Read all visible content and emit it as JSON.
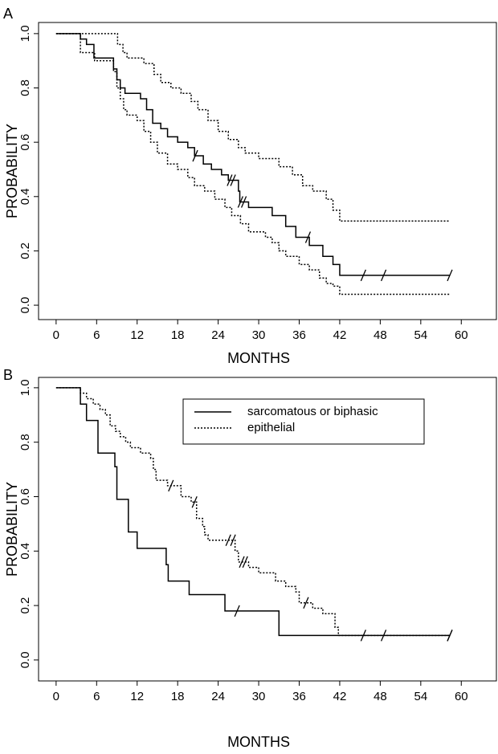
{
  "chart_data": [
    {
      "type": "step",
      "panel_label": "A",
      "xlabel": "MONTHS",
      "ylabel": "PROBABILITY",
      "xlim": [
        -2.6,
        65.2
      ],
      "ylim": [
        -0.053,
        1.041
      ],
      "xticks": [
        0,
        6,
        12,
        18,
        24,
        30,
        36,
        42,
        48,
        54,
        60
      ],
      "yticks": [
        {
          "value": 0,
          "label": "0.0"
        },
        0.2,
        0.4,
        0.6,
        0.8,
        {
          "value": 1,
          "label": "1.0"
        }
      ],
      "series": [
        {
          "color": "#000000",
          "dash": "solid",
          "x": [
            0,
            3.6,
            4.5,
            5.6,
            8.5,
            9.0,
            9.5,
            10.2,
            12.5,
            13.4,
            14.3,
            15.5,
            16.5,
            18.0,
            19.5,
            20.5,
            21.8,
            23.0,
            24.5,
            25.5,
            27.0,
            27.2,
            28.5,
            32.0,
            34.0,
            35.5,
            37.5,
            39.5,
            41.0,
            42.0,
            58.3
          ],
          "values": [
            1.0,
            0.98,
            0.96,
            0.91,
            0.87,
            0.83,
            0.8,
            0.78,
            0.76,
            0.72,
            0.67,
            0.65,
            0.62,
            0.6,
            0.58,
            0.55,
            0.52,
            0.5,
            0.48,
            0.46,
            0.42,
            0.38,
            0.36,
            0.33,
            0.29,
            0.25,
            0.22,
            0.18,
            0.15,
            0.11,
            0.11
          ],
          "censored": [
            20.6,
            25.7,
            26.2,
            27.3,
            27.8,
            37.3,
            45.5,
            48.5,
            58.3
          ]
        },
        {
          "color": "#000000",
          "dash": "dotted",
          "x": [
            0,
            9.1,
            9.9,
            10.5,
            13.0,
            14.5,
            15.5,
            17.0,
            18.5,
            20.0,
            21.0,
            22.5,
            24.0,
            25.5,
            27.0,
            28.0,
            30.0,
            33.0,
            35.0,
            36.5,
            38.0,
            40.0,
            41.0,
            42.0,
            58.3
          ],
          "values": [
            1.0,
            0.96,
            0.93,
            0.91,
            0.89,
            0.85,
            0.82,
            0.8,
            0.78,
            0.75,
            0.72,
            0.68,
            0.64,
            0.61,
            0.58,
            0.56,
            0.54,
            0.51,
            0.48,
            0.44,
            0.42,
            0.39,
            0.35,
            0.31,
            0.31
          ],
          "censored": []
        },
        {
          "color": "#000000",
          "dash": "dotted",
          "x": [
            0,
            3.6,
            5.7,
            8.5,
            9.0,
            9.5,
            10.0,
            10.5,
            12.0,
            13.0,
            14.0,
            15.0,
            16.5,
            18.0,
            19.5,
            20.5,
            22.0,
            23.5,
            25.0,
            26.0,
            27.3,
            28.5,
            31.0,
            32.0,
            33.0,
            34.0,
            36.0,
            37.5,
            39.0,
            40.0,
            41.0,
            42.0,
            58.3
          ],
          "values": [
            1.0,
            0.93,
            0.9,
            0.86,
            0.8,
            0.76,
            0.72,
            0.7,
            0.68,
            0.64,
            0.6,
            0.56,
            0.52,
            0.5,
            0.47,
            0.44,
            0.42,
            0.39,
            0.36,
            0.33,
            0.3,
            0.27,
            0.25,
            0.23,
            0.2,
            0.18,
            0.15,
            0.13,
            0.1,
            0.08,
            0.07,
            0.04,
            0.04
          ],
          "censored": []
        }
      ]
    },
    {
      "type": "step",
      "panel_label": "B",
      "xlabel": "MONTHS",
      "ylabel": "PROBABILITY",
      "xlim": [
        -2.6,
        65.2
      ],
      "ylim": [
        -0.077,
        1.038
      ],
      "xticks": [
        0,
        6,
        12,
        18,
        24,
        30,
        36,
        42,
        48,
        54,
        60
      ],
      "yticks": [
        {
          "value": 0,
          "label": "0.0"
        },
        0.2,
        0.4,
        0.6,
        0.8,
        {
          "value": 1,
          "label": "1.0"
        }
      ],
      "series": [
        {
          "name": "sarcomatous or biphasic",
          "color": "#000000",
          "dash": "solid",
          "x": [
            0,
            3.6,
            4.5,
            6.2,
            8.7,
            9.0,
            10.7,
            12.0,
            16.3,
            16.6,
            19.7,
            25.0,
            33.0,
            58.3
          ],
          "values": [
            1.0,
            0.94,
            0.88,
            0.76,
            0.71,
            0.59,
            0.47,
            0.41,
            0.35,
            0.29,
            0.24,
            0.18,
            0.09,
            0.09
          ],
          "censored": [
            26.8,
            58.3
          ]
        },
        {
          "name": "epithelial",
          "color": "#000000",
          "dash": "dotted",
          "x": [
            0,
            3.6,
            4.5,
            5.5,
            6.5,
            7.3,
            8.0,
            8.8,
            9.5,
            10.3,
            11.0,
            12.5,
            14.0,
            14.4,
            14.8,
            16.5,
            18.5,
            20.0,
            20.8,
            21.7,
            22.0,
            22.5,
            26.5,
            27.0,
            28.5,
            30.0,
            32.5,
            34.0,
            35.5,
            36.0,
            38.0,
            39.5,
            41.3,
            41.8,
            58.3
          ],
          "values": [
            1.0,
            0.98,
            0.96,
            0.94,
            0.92,
            0.9,
            0.86,
            0.84,
            0.82,
            0.8,
            0.78,
            0.76,
            0.74,
            0.7,
            0.66,
            0.64,
            0.6,
            0.58,
            0.52,
            0.49,
            0.46,
            0.44,
            0.4,
            0.36,
            0.34,
            0.32,
            0.29,
            0.27,
            0.25,
            0.21,
            0.19,
            0.17,
            0.12,
            0.09,
            0.09
          ],
          "censored": [
            17.0,
            20.5,
            25.5,
            26.2,
            27.5,
            28.0,
            37.0,
            45.5,
            48.5,
            58.3
          ]
        }
      ],
      "legend": "top-right"
    }
  ]
}
